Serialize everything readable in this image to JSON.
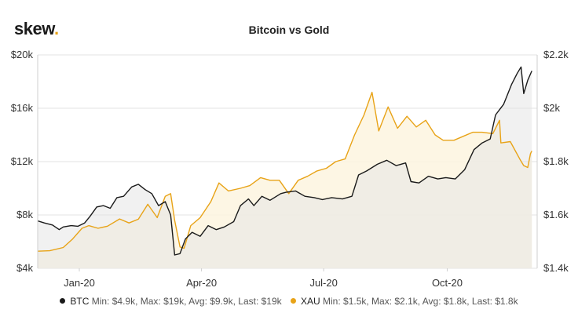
{
  "header": {
    "brand": "skew",
    "brand_dot": "."
  },
  "chart_data": {
    "type": "line",
    "title": "Bitcoin vs Gold",
    "x_ticks": [
      {
        "date": "2020-01-01",
        "label": "Jan-20"
      },
      {
        "date": "2020-04-01",
        "label": "Apr-20"
      },
      {
        "date": "2020-07-01",
        "label": "Jul-20"
      },
      {
        "date": "2020-10-01",
        "label": "Oct-20"
      }
    ],
    "xlim": [
      "2019-12-01",
      "2020-12-07"
    ],
    "y_left": {
      "ylim": [
        4000,
        20000
      ],
      "ticks": [
        4000,
        8000,
        12000,
        16000,
        20000
      ],
      "tick_labels": [
        "$4k",
        "$8k",
        "$12k",
        "$16k",
        "$20k"
      ]
    },
    "y_right": {
      "ylim": [
        1400,
        2200
      ],
      "ticks": [
        1400,
        1600,
        1800,
        2000,
        2200
      ],
      "tick_labels": [
        "$1.4k",
        "$1.6k",
        "$1.8k",
        "$2k",
        "$2.2k"
      ]
    },
    "grid": true,
    "legend_placement": "bottom-center",
    "series": [
      {
        "name": "BTC",
        "axis": "left",
        "color": "#1a1a1a",
        "fill": "#e6e6e6",
        "legend_stats": "Min: $4.9k, Max: $19k, Avg: $9.9k, Last: $19k",
        "points": [
          [
            "2019-12-01",
            7550
          ],
          [
            "2019-12-06",
            7400
          ],
          [
            "2019-12-12",
            7250
          ],
          [
            "2019-12-17",
            6900
          ],
          [
            "2019-12-20",
            7100
          ],
          [
            "2019-12-26",
            7200
          ],
          [
            "2019-12-31",
            7150
          ],
          [
            "2020-01-05",
            7400
          ],
          [
            "2020-01-09",
            7900
          ],
          [
            "2020-01-14",
            8600
          ],
          [
            "2020-01-19",
            8700
          ],
          [
            "2020-01-24",
            8500
          ],
          [
            "2020-01-29",
            9300
          ],
          [
            "2020-02-03",
            9400
          ],
          [
            "2020-02-09",
            10100
          ],
          [
            "2020-02-14",
            10300
          ],
          [
            "2020-02-19",
            9900
          ],
          [
            "2020-02-24",
            9600
          ],
          [
            "2020-02-29",
            8700
          ],
          [
            "2020-03-05",
            9000
          ],
          [
            "2020-03-09",
            8000
          ],
          [
            "2020-03-12",
            5000
          ],
          [
            "2020-03-16",
            5100
          ],
          [
            "2020-03-20",
            6200
          ],
          [
            "2020-03-25",
            6700
          ],
          [
            "2020-03-31",
            6400
          ],
          [
            "2020-04-06",
            7200
          ],
          [
            "2020-04-12",
            6900
          ],
          [
            "2020-04-18",
            7100
          ],
          [
            "2020-04-25",
            7500
          ],
          [
            "2020-04-30",
            8700
          ],
          [
            "2020-05-06",
            9200
          ],
          [
            "2020-05-10",
            8700
          ],
          [
            "2020-05-16",
            9400
          ],
          [
            "2020-05-22",
            9100
          ],
          [
            "2020-05-30",
            9600
          ],
          [
            "2020-06-03",
            9700
          ],
          [
            "2020-06-10",
            9800
          ],
          [
            "2020-06-17",
            9400
          ],
          [
            "2020-06-24",
            9300
          ],
          [
            "2020-06-30",
            9150
          ],
          [
            "2020-07-07",
            9300
          ],
          [
            "2020-07-15",
            9200
          ],
          [
            "2020-07-22",
            9400
          ],
          [
            "2020-07-27",
            11000
          ],
          [
            "2020-08-02",
            11300
          ],
          [
            "2020-08-10",
            11800
          ],
          [
            "2020-08-17",
            12100
          ],
          [
            "2020-08-24",
            11700
          ],
          [
            "2020-08-31",
            11900
          ],
          [
            "2020-09-04",
            10500
          ],
          [
            "2020-09-10",
            10400
          ],
          [
            "2020-09-17",
            10900
          ],
          [
            "2020-09-24",
            10700
          ],
          [
            "2020-09-30",
            10800
          ],
          [
            "2020-10-07",
            10700
          ],
          [
            "2020-10-14",
            11400
          ],
          [
            "2020-10-21",
            12900
          ],
          [
            "2020-10-27",
            13400
          ],
          [
            "2020-11-02",
            13700
          ],
          [
            "2020-11-06",
            15500
          ],
          [
            "2020-11-12",
            16300
          ],
          [
            "2020-11-18",
            17800
          ],
          [
            "2020-11-22",
            18600
          ],
          [
            "2020-11-25",
            19100
          ],
          [
            "2020-11-27",
            17100
          ],
          [
            "2020-11-30",
            18100
          ],
          [
            "2020-12-03",
            18800
          ]
        ]
      },
      {
        "name": "XAU",
        "axis": "right",
        "color": "#e8a317",
        "fill": "#fdf4df",
        "legend_stats": "Min: $1.5k, Max: $2.1k, Avg: $1.8k, Last: $1.8k",
        "points": [
          [
            "2019-12-01",
            1464
          ],
          [
            "2019-12-10",
            1466
          ],
          [
            "2019-12-20",
            1478
          ],
          [
            "2019-12-27",
            1510
          ],
          [
            "2020-01-03",
            1550
          ],
          [
            "2020-01-08",
            1560
          ],
          [
            "2020-01-15",
            1550
          ],
          [
            "2020-01-22",
            1558
          ],
          [
            "2020-01-31",
            1585
          ],
          [
            "2020-02-07",
            1570
          ],
          [
            "2020-02-14",
            1584
          ],
          [
            "2020-02-21",
            1640
          ],
          [
            "2020-02-28",
            1590
          ],
          [
            "2020-03-05",
            1670
          ],
          [
            "2020-03-09",
            1680
          ],
          [
            "2020-03-12",
            1580
          ],
          [
            "2020-03-16",
            1480
          ],
          [
            "2020-03-19",
            1475
          ],
          [
            "2020-03-24",
            1560
          ],
          [
            "2020-03-31",
            1590
          ],
          [
            "2020-04-08",
            1650
          ],
          [
            "2020-04-14",
            1720
          ],
          [
            "2020-04-21",
            1690
          ],
          [
            "2020-04-30",
            1700
          ],
          [
            "2020-05-07",
            1710
          ],
          [
            "2020-05-15",
            1740
          ],
          [
            "2020-05-22",
            1730
          ],
          [
            "2020-05-29",
            1730
          ],
          [
            "2020-06-05",
            1680
          ],
          [
            "2020-06-12",
            1730
          ],
          [
            "2020-06-19",
            1745
          ],
          [
            "2020-06-26",
            1765
          ],
          [
            "2020-07-03",
            1775
          ],
          [
            "2020-07-10",
            1800
          ],
          [
            "2020-07-17",
            1810
          ],
          [
            "2020-07-24",
            1900
          ],
          [
            "2020-07-31",
            1975
          ],
          [
            "2020-08-06",
            2060
          ],
          [
            "2020-08-11",
            1915
          ],
          [
            "2020-08-18",
            2005
          ],
          [
            "2020-08-25",
            1925
          ],
          [
            "2020-09-01",
            1970
          ],
          [
            "2020-09-08",
            1930
          ],
          [
            "2020-09-15",
            1955
          ],
          [
            "2020-09-22",
            1900
          ],
          [
            "2020-09-28",
            1880
          ],
          [
            "2020-10-06",
            1880
          ],
          [
            "2020-10-13",
            1895
          ],
          [
            "2020-10-20",
            1910
          ],
          [
            "2020-10-27",
            1910
          ],
          [
            "2020-11-04",
            1905
          ],
          [
            "2020-11-09",
            1955
          ],
          [
            "2020-11-10",
            1870
          ],
          [
            "2020-11-17",
            1875
          ],
          [
            "2020-11-24",
            1810
          ],
          [
            "2020-11-27",
            1785
          ],
          [
            "2020-11-30",
            1778
          ],
          [
            "2020-12-02",
            1830
          ],
          [
            "2020-12-03",
            1840
          ]
        ]
      }
    ]
  }
}
